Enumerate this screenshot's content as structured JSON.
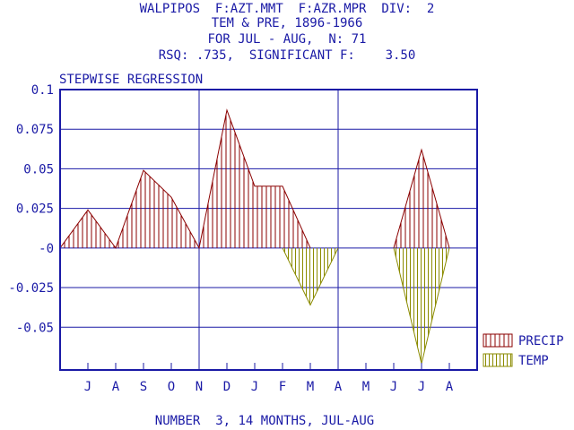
{
  "header": {
    "line1": "WALPIPOS  F:AZT.MMT  F:AZR.MPR  DIV:  2",
    "line2": "TEM & PRE, 1896-1966",
    "line3": "FOR JUL - AUG,  N: 71",
    "line4": "RSQ: .735,  SIGNIFICANT F:    3.50"
  },
  "footer": "NUMBER  3, 14 MONTHS, JUL-AUG",
  "colors": {
    "axis": "#1a1aa6",
    "precip": "#8b0000",
    "temp": "#8b8b00"
  },
  "chart_data": {
    "type": "area",
    "title": "STEPWISE REGRESSION",
    "x": [
      "J",
      "A",
      "S",
      "O",
      "N",
      "D",
      "J",
      "F",
      "M",
      "A",
      "M",
      "J",
      "J",
      "A"
    ],
    "y_ticks": [
      {
        "value": 0.1,
        "label": "0.1"
      },
      {
        "value": 0.075,
        "label": "0.075"
      },
      {
        "value": 0.05,
        "label": "0.05"
      },
      {
        "value": 0.025,
        "label": "0.025"
      },
      {
        "value": 0,
        "label": "-0"
      },
      {
        "value": -0.025,
        "label": "-0.025"
      },
      {
        "value": -0.05,
        "label": "-0.05"
      }
    ],
    "ylim": [
      -0.077,
      0.1
    ],
    "grid": true,
    "vertical_dividers_after": [
      4,
      9
    ],
    "legend_position": "bottom-right",
    "series": [
      {
        "name": "PRECIP",
        "values": [
          0.024,
          0.0,
          0.049,
          0.032,
          0.0,
          0.087,
          0.039,
          0.039,
          0.0,
          0.0,
          0.0,
          0.0,
          0.062,
          0.0
        ]
      },
      {
        "name": "TEMP",
        "values": [
          0.0,
          0.0,
          0.0,
          0.0,
          0.0,
          0.0,
          0.0,
          0.0,
          -0.036,
          0.0,
          0.0,
          0.0,
          -0.073,
          0.0
        ]
      }
    ],
    "series_segments": [
      {
        "series": 0,
        "points": [
          [
            -1,
            0.0
          ],
          [
            0,
            0.024
          ],
          [
            1,
            0.0
          ],
          [
            2,
            0.049
          ],
          [
            3,
            0.032
          ],
          [
            4,
            0.0
          ],
          [
            5,
            0.087
          ],
          [
            6,
            0.039
          ],
          [
            7,
            0.039
          ],
          [
            8,
            0.0
          ]
        ]
      },
      {
        "series": 0,
        "points": [
          [
            11,
            0.0
          ],
          [
            12,
            0.062
          ],
          [
            13,
            0.0
          ]
        ]
      },
      {
        "series": 1,
        "points": [
          [
            7,
            0.0
          ],
          [
            8,
            -0.036
          ],
          [
            9,
            0.0
          ]
        ]
      },
      {
        "series": 1,
        "points": [
          [
            11,
            0.0
          ],
          [
            12,
            -0.073
          ],
          [
            13,
            0.0
          ]
        ]
      }
    ]
  }
}
